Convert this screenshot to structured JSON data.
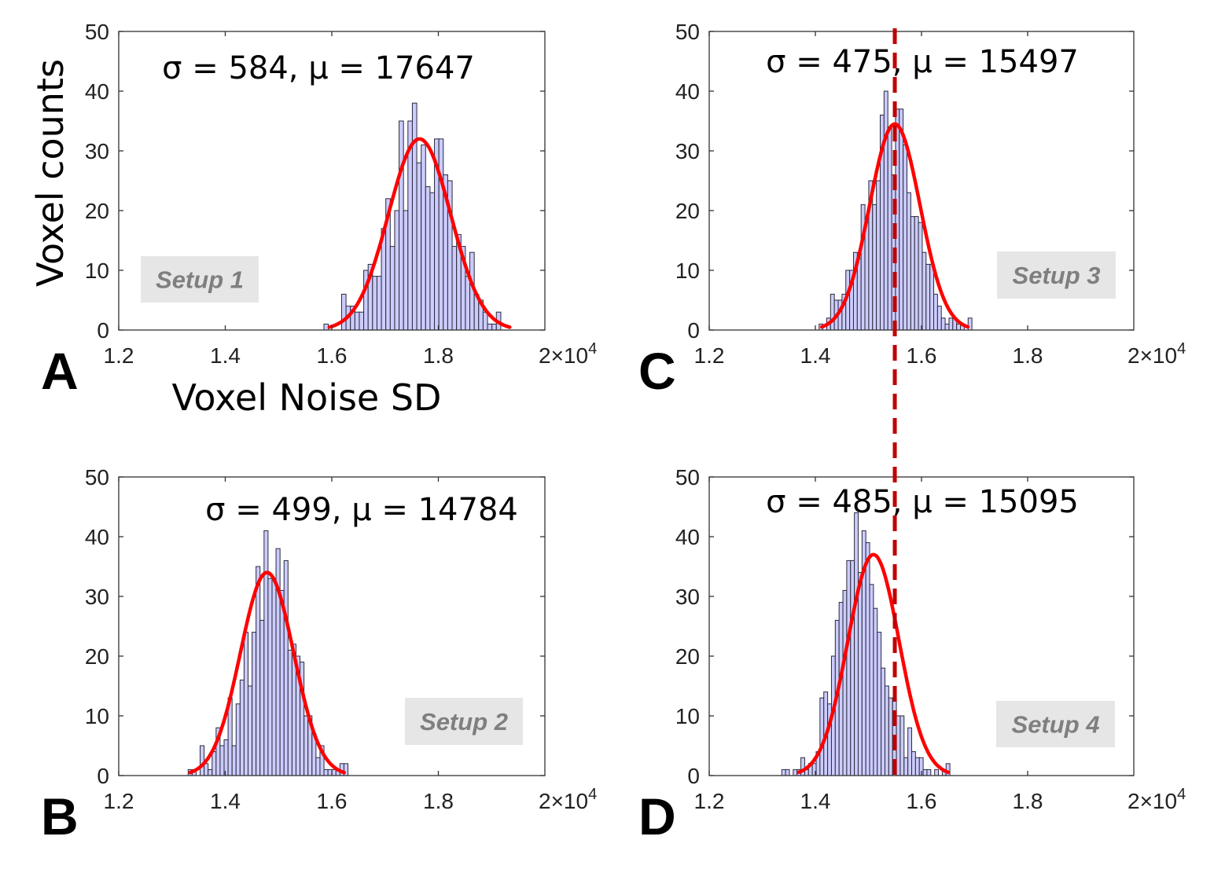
{
  "chart_data": [
    {
      "type": "bar",
      "panel_letter": "A",
      "stats_label": "σ = 584, μ = 17647",
      "setup_label": "Setup 1",
      "sigma": 584,
      "mu": 17647,
      "fit_peak": 32,
      "bin_start": 15852,
      "bin_width": 83,
      "counts": [
        1,
        0,
        0,
        0,
        6,
        4,
        4,
        3,
        3,
        10,
        11,
        9,
        9,
        17,
        22,
        14,
        20,
        35,
        20,
        35,
        38,
        28,
        31,
        24,
        23,
        32,
        32,
        26,
        25,
        14,
        16,
        14,
        9,
        13,
        6,
        5,
        3,
        1,
        1,
        3
      ],
      "xlim": [
        12000,
        20000
      ],
      "ylim": [
        0,
        50
      ]
    },
    {
      "type": "bar",
      "panel_letter": "B",
      "stats_label": "σ = 499, μ = 14784",
      "setup_label": "Setup 2",
      "sigma": 499,
      "mu": 14784,
      "fit_peak": 34,
      "bin_start": 13303,
      "bin_width": 75,
      "counts": [
        1,
        1,
        0,
        5,
        2,
        1,
        4,
        8,
        5,
        6,
        13,
        5,
        12,
        16,
        24,
        15,
        24,
        35,
        26,
        41,
        33,
        33,
        38,
        31,
        36,
        21,
        22,
        20,
        19,
        10,
        10,
        7,
        3,
        5,
        1,
        1,
        1,
        1,
        2,
        2
      ],
      "xlim": [
        12000,
        20000
      ],
      "ylim": [
        0,
        50
      ]
    },
    {
      "type": "bar",
      "panel_letter": "C",
      "stats_label": "σ = 475, μ = 15497",
      "setup_label": "Setup 3",
      "sigma": 475,
      "mu": 15497,
      "fit_peak": 34.5,
      "bin_start": 14070,
      "bin_width": 72,
      "counts": [
        1,
        0,
        2,
        6,
        5,
        5,
        6,
        10,
        10,
        13,
        12,
        21,
        18,
        25,
        21,
        25,
        36,
        40,
        34,
        26,
        37,
        37,
        31,
        23,
        19,
        19,
        18,
        13,
        11,
        11,
        6,
        4,
        2,
        1,
        2,
        2,
        1,
        1,
        0,
        2
      ],
      "xlim": [
        12000,
        20000
      ],
      "ylim": [
        0,
        50
      ]
    },
    {
      "type": "bar",
      "panel_letter": "D",
      "stats_label": "σ = 485, μ = 15095",
      "setup_label": "Setup 4",
      "sigma": 485,
      "mu": 15095,
      "fit_peak": 37,
      "bin_start": 13367,
      "bin_width": 72,
      "counts": [
        1,
        1,
        0,
        1,
        1,
        3,
        1,
        2,
        2,
        4,
        13,
        14,
        12,
        20,
        26,
        29,
        31,
        36,
        36,
        44,
        34,
        41,
        39,
        32,
        28,
        24,
        18,
        15,
        13,
        13,
        10,
        10,
        3,
        8,
        4,
        3,
        3,
        1,
        1,
        0,
        1,
        0,
        1,
        2
      ],
      "xlim": [
        12000,
        20000
      ],
      "ylim": [
        0,
        50
      ]
    }
  ],
  "x_ticks": [
    "1.2",
    "1.4",
    "1.6",
    "1.8"
  ],
  "x_tick_values": [
    12000,
    14000,
    16000,
    18000
  ],
  "x_last_tick": {
    "base": "2×10",
    "exponent": "4"
  },
  "y_ticks": [
    "0",
    "10",
    "20",
    "30",
    "40",
    "50"
  ],
  "y_tick_values": [
    0,
    10,
    20,
    30,
    40,
    50
  ],
  "ylabel": "Voxel counts",
  "xlabel": "Voxel Noise SD",
  "reference_line_x": 15497,
  "colors": {
    "bar_fill": "#ccccff",
    "bar_edge": "#2a2a3a",
    "fit": "#ff0000",
    "reference": "#c00000",
    "setup_box": "#e6e6e6",
    "setup_text": "#7f7f7f"
  }
}
